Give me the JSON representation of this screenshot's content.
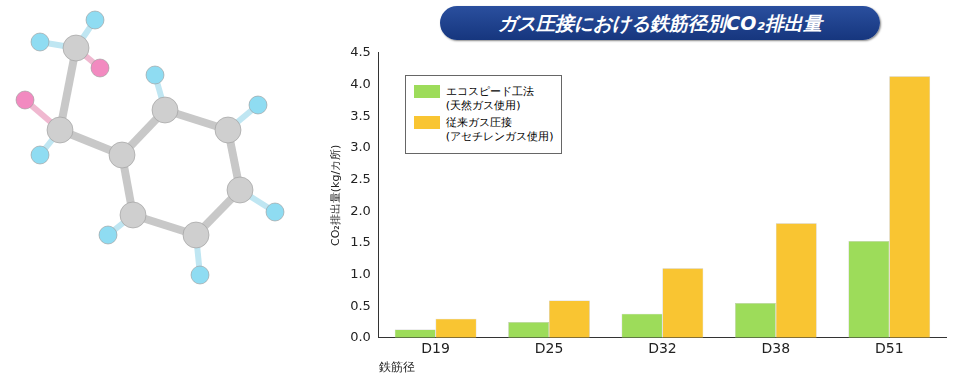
{
  "chart_data": {
    "type": "bar",
    "title": "ガス圧接における鉄筋径別CO₂排出量",
    "y_label": "CO₂排出量(kg/カ所)",
    "x_label": "鉄筋径",
    "categories": [
      "D19",
      "D25",
      "D32",
      "D38",
      "D51"
    ],
    "series": [
      {
        "name": "エコスピード工法\n(天然ガス使用)",
        "color": "#9ddc5a",
        "values": [
          0.13,
          0.25,
          0.38,
          0.55,
          1.53
        ]
      },
      {
        "name": "従来ガス圧接\n(アセチレンガス使用)",
        "color": "#f9c532",
        "values": [
          0.3,
          0.59,
          1.1,
          1.81,
          4.13
        ]
      }
    ],
    "ylim": [
      0,
      4.5
    ],
    "yticks": [
      {
        "value": 0,
        "label": "0.0"
      },
      0.5,
      {
        "value": 1,
        "label": "1.0"
      },
      1.5,
      {
        "value": 2,
        "label": "2.0"
      },
      2.5,
      {
        "value": 3,
        "label": "3.0"
      },
      3.5,
      {
        "value": 4,
        "label": "4.0"
      },
      4.5
    ],
    "grid": false,
    "legend": "upper left"
  }
}
